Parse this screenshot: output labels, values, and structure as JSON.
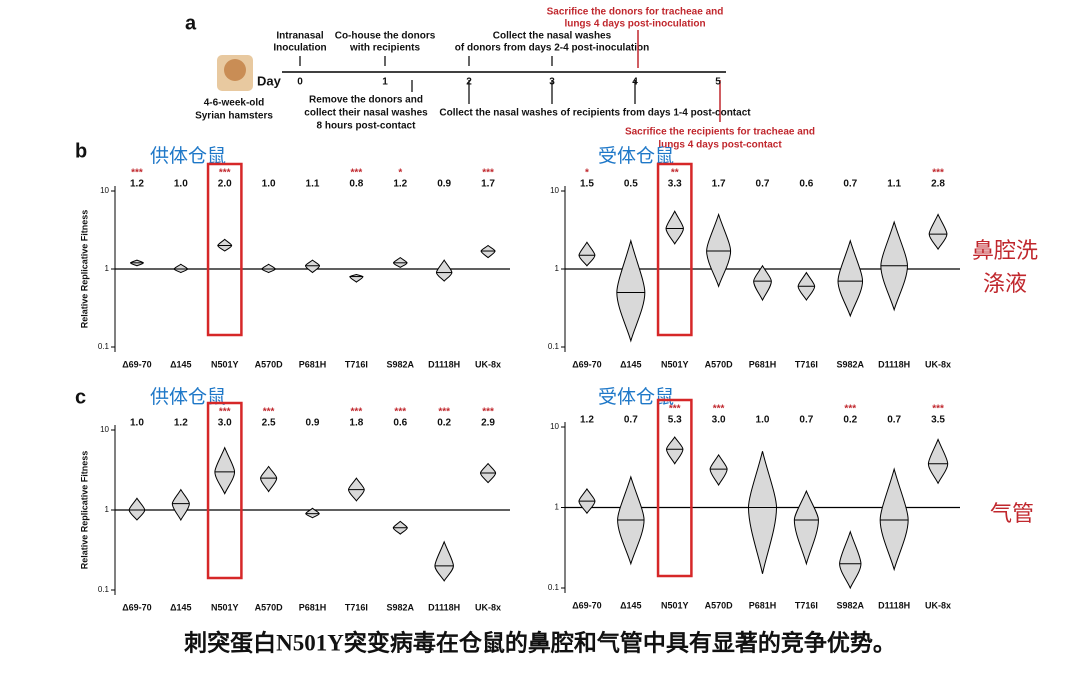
{
  "panel_labels": [
    "a",
    "b",
    "c"
  ],
  "timeline": {
    "animal_lines": [
      "4-6-week-old",
      "Syrian hamsters"
    ],
    "day_label": "Day",
    "days": [
      0,
      1,
      2,
      3,
      4,
      5
    ],
    "inoculation": [
      "Intranasal",
      "Inoculation"
    ],
    "cohouse": [
      "Co-house the donors",
      "with recipients"
    ],
    "collect_donors": [
      "Collect the nasal washes",
      "of donors from days 2-4 post-inoculation"
    ],
    "sacrifice_donors": [
      "Sacrifice the donors for tracheae and",
      "lungs 4 days post-inoculation"
    ],
    "remove_donors": [
      "Remove the donors and",
      "collect their nasal washes",
      "8 hours post-contact"
    ],
    "collect_recipients": "Collect the nasal washes of recipients from days 1-4 post-contact",
    "sacrifice_recipients": [
      "Sacrifice the recipients for tracheae and",
      "lungs 4 days post-contact"
    ]
  },
  "row_labels": [
    [
      "鼻腔洗",
      "涤液"
    ],
    [
      "气管"
    ]
  ],
  "caption": "刺突蛋白N501Y突变病毒在仓鼠的鼻腔和气管中具有显著的竞争优势。",
  "chart_data": [
    {
      "type": "violin",
      "title": "供体仓鼠",
      "y_label": "Relative Replicative Fitness",
      "categories": [
        "Δ69-70",
        "Δ145",
        "N501Y",
        "A570D",
        "P681H",
        "T716I",
        "S982A",
        "D1118H",
        "UK-8x"
      ],
      "values": [
        1.2,
        1.0,
        2.0,
        1.0,
        1.1,
        0.8,
        1.2,
        0.9,
        1.7
      ],
      "value_labels": [
        "1.2",
        "1.0",
        "2.0",
        "1.0",
        "1.1",
        "0.8",
        "1.2",
        "0.9",
        "1.7"
      ],
      "lows": [
        1.1,
        0.9,
        1.7,
        0.9,
        0.9,
        0.68,
        1.05,
        0.7,
        1.4
      ],
      "highs": [
        1.3,
        1.15,
        2.4,
        1.15,
        1.3,
        0.85,
        1.4,
        1.3,
        2.0
      ],
      "significance": [
        "***",
        null,
        "***",
        null,
        null,
        "***",
        "*",
        null,
        "***"
      ],
      "highlight_index": 2,
      "log_scale": true,
      "ylim": [
        0.1,
        10
      ],
      "yticks": [
        0.1,
        1,
        10
      ],
      "reference_line": 1,
      "color": "#d9d9d9"
    },
    {
      "type": "violin",
      "title": "受体仓鼠",
      "categories": [
        "Δ69-70",
        "Δ145",
        "N501Y",
        "A570D",
        "P681H",
        "T716I",
        "S982A",
        "D1118H",
        "UK-8x"
      ],
      "values": [
        1.5,
        0.5,
        3.3,
        1.7,
        0.7,
        0.6,
        0.7,
        1.1,
        2.8
      ],
      "value_labels": [
        "1.5",
        "0.5",
        "3.3",
        "1.7",
        "0.7",
        "0.6",
        "0.7",
        "1.1",
        "2.8"
      ],
      "lows": [
        1.1,
        0.12,
        2.1,
        0.6,
        0.4,
        0.4,
        0.25,
        0.3,
        1.8
      ],
      "highs": [
        2.2,
        2.3,
        5.5,
        5,
        1.1,
        0.9,
        2.3,
        4,
        5
      ],
      "significance": [
        "*",
        null,
        "**",
        null,
        null,
        null,
        null,
        null,
        "***"
      ],
      "highlight_index": 2,
      "log_scale": true,
      "ylim": [
        0.1,
        10
      ],
      "yticks": [
        0.1,
        1,
        10
      ],
      "reference_line": 1,
      "color": "#d9d9d9"
    },
    {
      "type": "violin",
      "title": "供体仓鼠",
      "y_label": "Relative Replicative Fitness",
      "categories": [
        "Δ69-70",
        "Δ145",
        "N501Y",
        "A570D",
        "P681H",
        "T716I",
        "S982A",
        "D1118H",
        "UK-8x"
      ],
      "values": [
        1.0,
        1.2,
        3.0,
        2.5,
        0.9,
        1.8,
        0.6,
        0.2,
        2.9
      ],
      "value_labels": [
        "1.0",
        "1.2",
        "3.0",
        "2.5",
        "0.9",
        "1.8",
        "0.6",
        "0.2",
        "2.9"
      ],
      "lows": [
        0.75,
        0.75,
        1.6,
        1.7,
        0.8,
        1.3,
        0.5,
        0.13,
        2.2
      ],
      "highs": [
        1.4,
        1.8,
        6,
        3.5,
        1.05,
        2.5,
        0.72,
        0.4,
        3.8
      ],
      "significance": [
        null,
        null,
        "***",
        "***",
        null,
        "***",
        "***",
        "***",
        "***"
      ],
      "highlight_index": 2,
      "log_scale": true,
      "ylim": [
        0.1,
        10
      ],
      "yticks": [
        0.1,
        1,
        10
      ],
      "reference_line": 1,
      "color": "#d9d9d9"
    },
    {
      "type": "violin",
      "title": "受体仓鼠",
      "categories": [
        "Δ69-70",
        "Δ145",
        "N501Y",
        "A570D",
        "P681H",
        "T716I",
        "S982A",
        "D1118H",
        "UK-8x"
      ],
      "values": [
        1.2,
        0.7,
        5.3,
        3.0,
        1.0,
        0.7,
        0.2,
        0.7,
        3.5
      ],
      "value_labels": [
        "1.2",
        "0.7",
        "5.3",
        "3.0",
        "1.0",
        "0.7",
        "0.2",
        "0.7",
        "3.5"
      ],
      "lows": [
        0.85,
        0.2,
        3.5,
        1.9,
        0.15,
        0.2,
        0.1,
        0.17,
        2
      ],
      "highs": [
        1.7,
        2.4,
        7.5,
        4.5,
        5,
        1.6,
        0.5,
        3,
        7
      ],
      "significance": [
        null,
        null,
        "***",
        "***",
        null,
        null,
        "***",
        null,
        "***"
      ],
      "highlight_index": 2,
      "log_scale": true,
      "ylim": [
        0.1,
        10
      ],
      "yticks": [
        0.1,
        1,
        10
      ],
      "reference_line": 1,
      "color": "#d9d9d9"
    }
  ]
}
